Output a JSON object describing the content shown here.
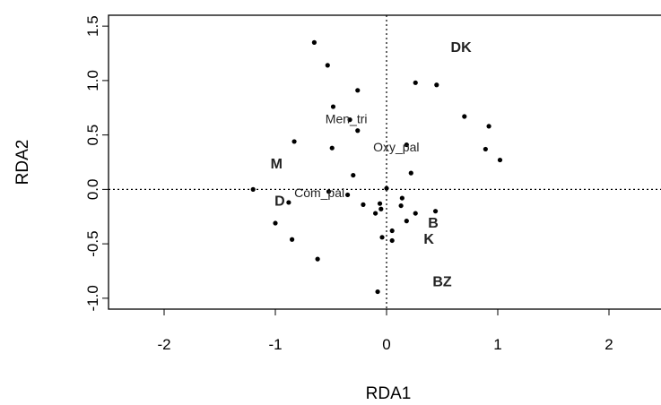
{
  "chart_data": {
    "type": "scatter",
    "title": "",
    "xlabel": "RDA1",
    "ylabel": "RDA2",
    "xlim": [
      -2.5,
      2.5
    ],
    "ylim": [
      -1.1,
      1.6
    ],
    "xticks": [
      "-2",
      "-1",
      "0",
      "1",
      "2"
    ],
    "xtick_values": [
      -2,
      -1,
      0,
      1,
      2
    ],
    "yticks": [
      "-1.0",
      "-0.5",
      "0.0",
      "0.5",
      "1.0",
      "1.5"
    ],
    "ytick_values": [
      -1.0,
      -0.5,
      0.0,
      0.5,
      1.0,
      1.5
    ],
    "grid": false,
    "reference_lines": {
      "x": 0,
      "y": 0,
      "style": "dotted"
    },
    "points": [
      {
        "x": -0.65,
        "y": 1.35
      },
      {
        "x": -0.53,
        "y": 1.14
      },
      {
        "x": -0.26,
        "y": 0.91
      },
      {
        "x": 0.26,
        "y": 0.98
      },
      {
        "x": 0.45,
        "y": 0.96
      },
      {
        "x": -0.48,
        "y": 0.76
      },
      {
        "x": -0.33,
        "y": 0.64
      },
      {
        "x": -0.26,
        "y": 0.54
      },
      {
        "x": 0.7,
        "y": 0.67
      },
      {
        "x": 0.92,
        "y": 0.58
      },
      {
        "x": -0.83,
        "y": 0.44
      },
      {
        "x": -0.49,
        "y": 0.38
      },
      {
        "x": 0.18,
        "y": 0.41
      },
      {
        "x": 0.89,
        "y": 0.37
      },
      {
        "x": 1.02,
        "y": 0.27
      },
      {
        "x": -0.3,
        "y": 0.13
      },
      {
        "x": 0.22,
        "y": 0.15
      },
      {
        "x": -1.2,
        "y": 0.0
      },
      {
        "x": -0.52,
        "y": -0.02
      },
      {
        "x": 0.0,
        "y": 0.01
      },
      {
        "x": -0.35,
        "y": -0.05
      },
      {
        "x": -0.88,
        "y": -0.12
      },
      {
        "x": 0.14,
        "y": -0.08
      },
      {
        "x": -0.21,
        "y": -0.14
      },
      {
        "x": -0.06,
        "y": -0.13
      },
      {
        "x": 0.13,
        "y": -0.15
      },
      {
        "x": -0.05,
        "y": -0.18
      },
      {
        "x": -0.1,
        "y": -0.22
      },
      {
        "x": 0.26,
        "y": -0.22
      },
      {
        "x": 0.44,
        "y": -0.2
      },
      {
        "x": -1.0,
        "y": -0.31
      },
      {
        "x": 0.18,
        "y": -0.29
      },
      {
        "x": 0.05,
        "y": -0.38
      },
      {
        "x": -0.04,
        "y": -0.44
      },
      {
        "x": 0.05,
        "y": -0.47
      },
      {
        "x": -0.85,
        "y": -0.46
      },
      {
        "x": -0.62,
        "y": -0.64
      },
      {
        "x": -0.08,
        "y": -0.94
      }
    ],
    "site_labels": [
      {
        "text": "DK",
        "x": 0.67,
        "y": 1.31
      },
      {
        "text": "M",
        "x": -0.99,
        "y": 0.24
      },
      {
        "text": "D",
        "x": -0.96,
        "y": -0.1
      },
      {
        "text": "B",
        "x": 0.42,
        "y": -0.3
      },
      {
        "text": "K",
        "x": 0.38,
        "y": -0.45
      },
      {
        "text": "BZ",
        "x": 0.5,
        "y": -0.84
      }
    ],
    "species_labels": [
      {
        "text": "Men_tri",
        "x": -0.55,
        "y": 0.65
      },
      {
        "text": "Oxy_pal",
        "x": -0.12,
        "y": 0.39
      },
      {
        "text": "Com_pal",
        "x": -0.83,
        "y": -0.03
      }
    ]
  }
}
